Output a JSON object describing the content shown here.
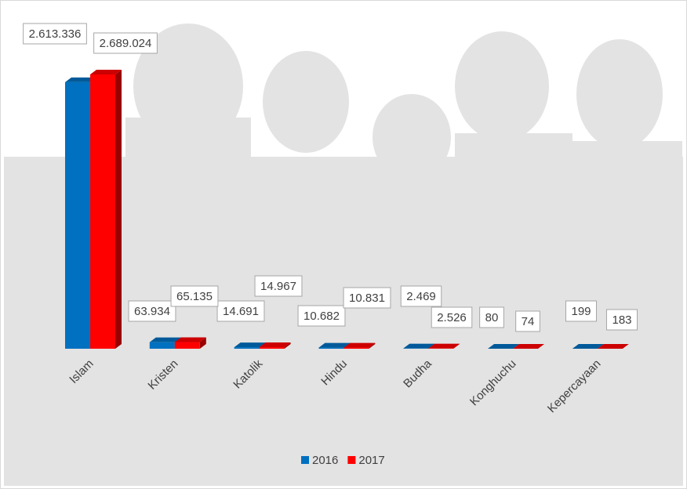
{
  "chart_data": {
    "type": "bar3d",
    "categories": [
      "Islam",
      "Kristen",
      "Katolik",
      "Hindu",
      "Budha",
      "Konghuchu",
      "Kepercayaan"
    ],
    "series": [
      {
        "name": "2016",
        "color": "#0070c0",
        "values": [
          2613336,
          63934,
          14691,
          10682,
          2469,
          80,
          199
        ],
        "value_labels": [
          "2.613.336",
          "63.934",
          "14.691",
          "10.682",
          "2.469",
          "80",
          "199"
        ]
      },
      {
        "name": "2017",
        "color": "#ff0000",
        "values": [
          2689024,
          65135,
          14967,
          10831,
          2526,
          74,
          183
        ],
        "value_labels": [
          "2.689.024",
          "65.135",
          "14.967",
          "10.831",
          "2.526",
          "74",
          "183"
        ]
      }
    ],
    "legend": "bottom"
  }
}
